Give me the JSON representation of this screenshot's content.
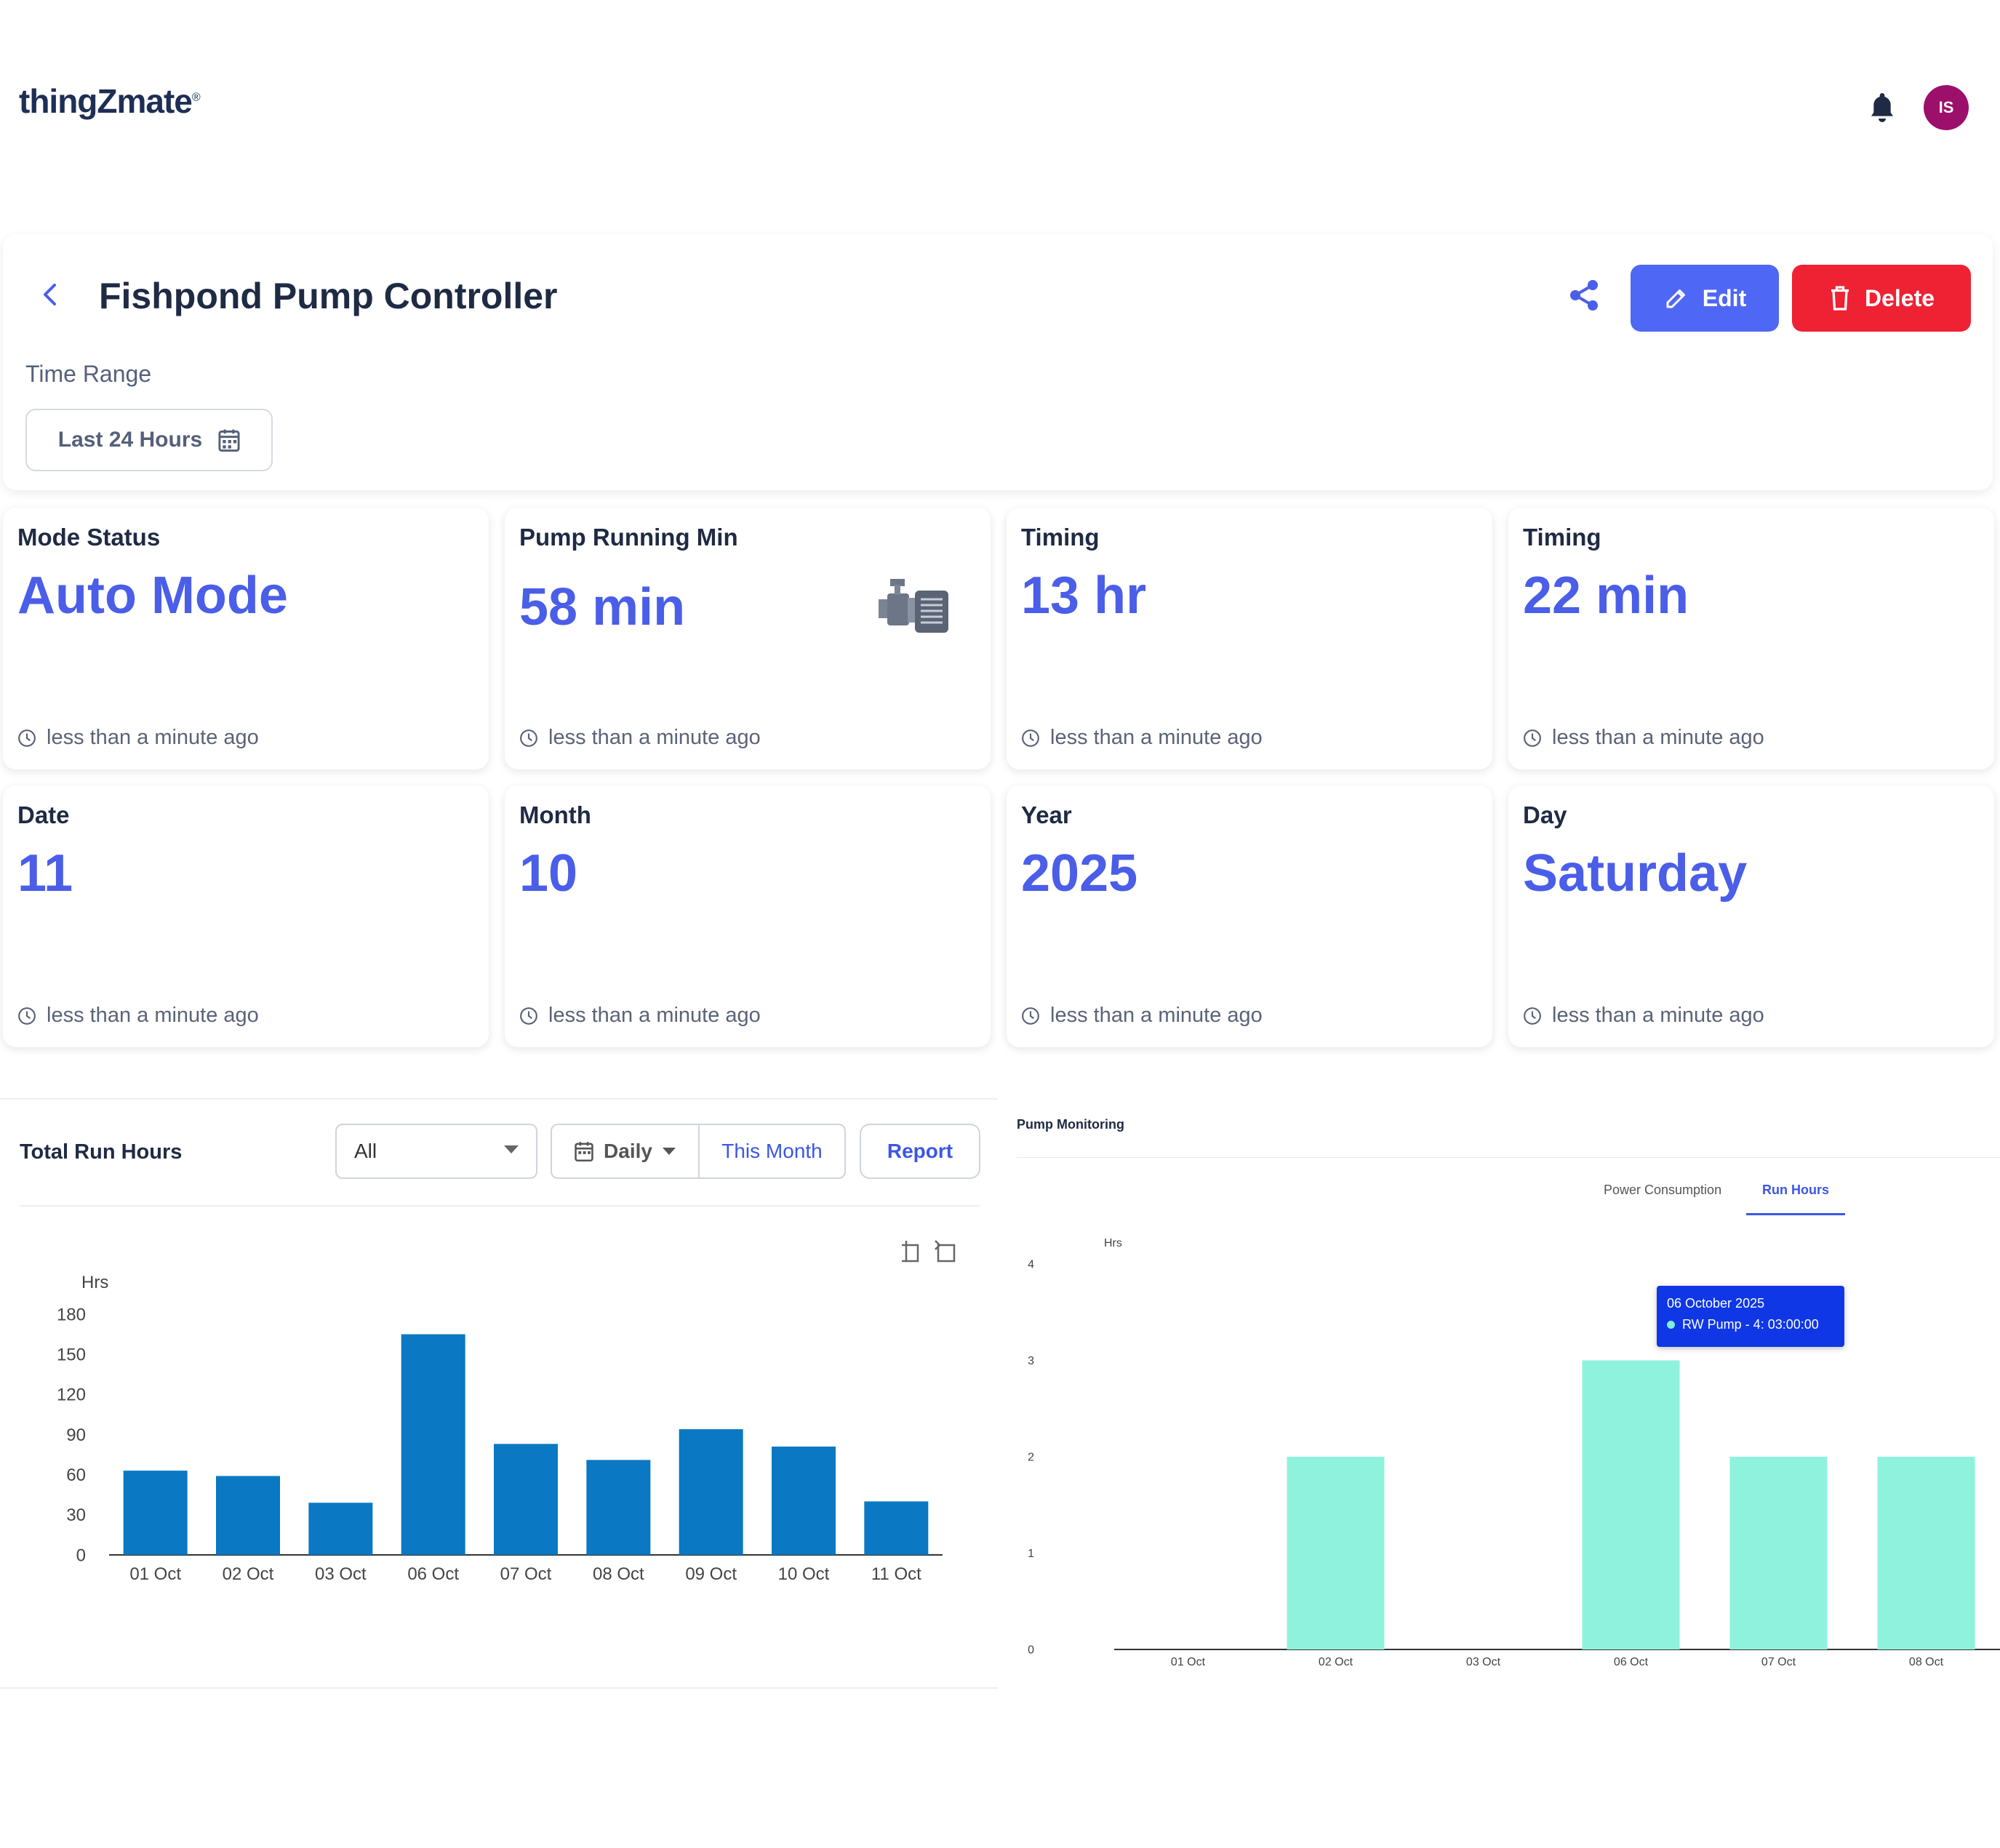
{
  "app": {
    "logo": "thingZmate",
    "logo_mark": "®",
    "avatar_initials": "IS"
  },
  "header": {
    "title": "Fishpond Pump Controller",
    "edit_label": "Edit",
    "delete_label": "Delete",
    "time_range_label": "Time Range",
    "time_range_value": "Last 24 Hours"
  },
  "colors": {
    "accent": "#4f67f5",
    "danger": "#ee2233",
    "value": "#4a5ee8",
    "bar_left": "#0a78c2",
    "bar_right": "#8ff2dc"
  },
  "cards": [
    {
      "label": "Mode Status",
      "value": "Auto Mode",
      "time": "less than a minute ago"
    },
    {
      "label": "Pump Running Min",
      "value": "58 min",
      "time": "less than a minute ago",
      "icon": "pump-icon"
    },
    {
      "label": "Timing",
      "value": "13 hr",
      "time": "less than a minute ago"
    },
    {
      "label": "Timing",
      "value": "22 min",
      "time": "less than a minute ago"
    },
    {
      "label": "Date",
      "value": "11",
      "time": "less than a minute ago"
    },
    {
      "label": "Month",
      "value": "10",
      "time": "less than a minute ago"
    },
    {
      "label": "Year",
      "value": "2025",
      "time": "less than a minute ago"
    },
    {
      "label": "Day",
      "value": "Saturday",
      "time": "less than a minute ago"
    }
  ],
  "left_panel": {
    "title": "Total Run Hours",
    "filter_value": "All",
    "period_label": "Daily",
    "range_label": "This Month",
    "report_label": "Report"
  },
  "right_panel": {
    "title": "Pump Monitoring",
    "tabs": [
      "Power Consumption",
      "Run Hours"
    ],
    "active_tab": "Run Hours",
    "tooltip_date": "06 October 2025",
    "tooltip_value": "RW Pump - 4: 03:00:00"
  },
  "chart_data": [
    {
      "type": "bar",
      "title": "Total Run Hours",
      "ylabel": "Hrs",
      "categories": [
        "01 Oct",
        "02 Oct",
        "03 Oct",
        "06 Oct",
        "07 Oct",
        "08 Oct",
        "09 Oct",
        "10 Oct",
        "11 Oct"
      ],
      "values": [
        63,
        59,
        39,
        165,
        83,
        71,
        94,
        81,
        40
      ],
      "yticks": [
        0,
        30,
        60,
        90,
        120,
        150,
        180
      ],
      "ylim": [
        0,
        180
      ],
      "color": "#0a78c2"
    },
    {
      "type": "bar",
      "title": "Pump Monitoring",
      "ylabel": "Hrs",
      "categories": [
        "01 Oct",
        "02 Oct",
        "03 Oct",
        "06 Oct",
        "07 Oct",
        "08 Oct"
      ],
      "values": [
        0,
        2,
        0,
        3,
        2,
        2
      ],
      "yticks": [
        0,
        1,
        2,
        3,
        4
      ],
      "ylim": [
        0,
        4
      ],
      "color": "#8ff2dc"
    }
  ]
}
